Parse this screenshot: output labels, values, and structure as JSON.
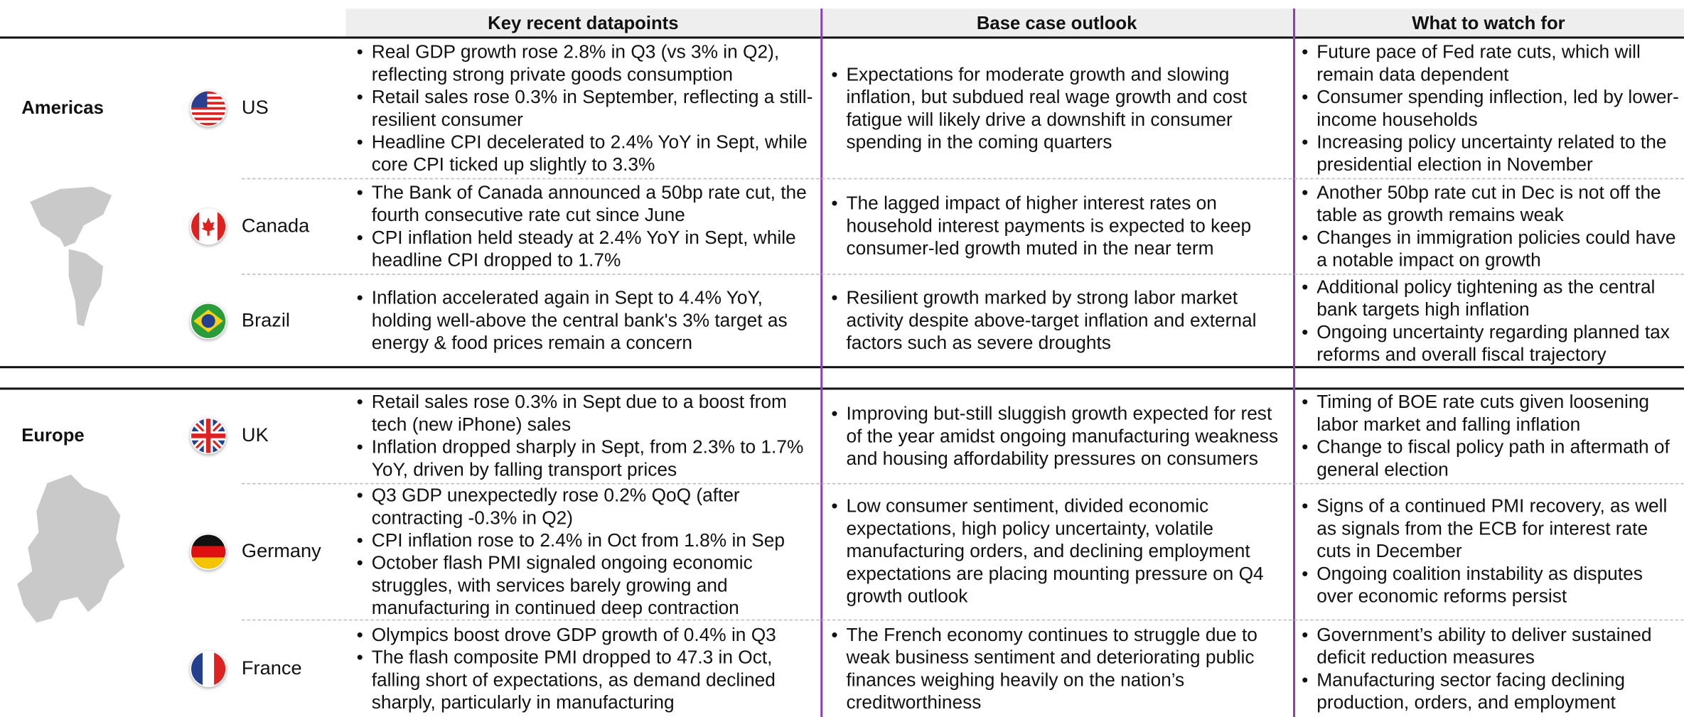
{
  "header": {
    "columns": [
      "Key recent datapoints",
      "Base case outlook",
      "What to watch for"
    ]
  },
  "regions": [
    {
      "name": "Americas",
      "countries": [
        {
          "name": "US",
          "datapoints": [
            "Real GDP growth rose 2.8% in Q3 (vs 3% in Q2), reflecting strong private goods consumption",
            "Retail sales rose 0.3% in September, reflecting a still-resilient consumer",
            "Headline CPI decelerated to 2.4% YoY in Sept, while core CPI ticked up slightly to 3.3%"
          ],
          "outlook": [
            "Expectations for moderate growth and slowing inflation, but subdued real wage growth and cost fatigue will likely drive a downshift in consumer spending in the coming quarters"
          ],
          "watch": [
            "Future pace of Fed rate cuts, which will remain data dependent",
            "Consumer spending inflection, led by lower-income households",
            "Increasing policy uncertainty related to the presidential election in November"
          ]
        },
        {
          "name": "Canada",
          "datapoints": [
            "The Bank of Canada announced a 50bp rate cut, the fourth consecutive rate cut since June",
            "CPI inflation held steady at 2.4% YoY in Sept, while headline CPI dropped to 1.7%"
          ],
          "outlook": [
            "The lagged impact of higher interest rates on household interest payments is expected to keep consumer-led growth muted in the near term"
          ],
          "watch": [
            "Another 50bp rate cut in Dec is not off the table as growth remains weak",
            "Changes in immigration policies could have a notable impact on growth"
          ]
        },
        {
          "name": "Brazil",
          "datapoints": [
            "Inflation accelerated again in Sept to 4.4% YoY, holding well-above the central bank's 3% target as energy & food prices remain a concern"
          ],
          "outlook": [
            "Resilient growth marked by strong labor market activity despite above-target inflation and external factors such as severe droughts"
          ],
          "watch": [
            "Additional policy tightening as the central bank targets high inflation",
            "Ongoing uncertainty regarding planned tax reforms and overall fiscal trajectory"
          ]
        }
      ]
    },
    {
      "name": "Europe",
      "countries": [
        {
          "name": "UK",
          "datapoints": [
            "Retail sales rose 0.3% in Sept due to a boost from tech (new iPhone) sales",
            "Inflation dropped sharply in Sept, from 2.3% to 1.7% YoY, driven by falling transport prices"
          ],
          "outlook": [
            "Improving but-still sluggish growth expected for rest of the year amidst ongoing manufacturing weakness and housing affordability pressures on consumers"
          ],
          "watch": [
            "Timing of BOE rate cuts given loosening labor market and falling inflation",
            "Change to fiscal policy path in aftermath of general election"
          ]
        },
        {
          "name": "Germany",
          "datapoints": [
            "Q3 GDP unexpectedly rose 0.2% QoQ (after contracting -0.3% in Q2)",
            "CPI inflation rose to 2.4% in Oct from 1.8% in Sep",
            "October flash PMI signaled ongoing economic struggles, with services barely growing and manufacturing in continued deep contraction"
          ],
          "outlook": [
            "Low consumer sentiment, divided economic expectations, high policy uncertainty, volatile manufacturing orders, and declining employment expectations are placing mounting pressure on Q4 growth outlook"
          ],
          "watch": [
            "Signs of a continued PMI recovery, as well as signals from the ECB for interest rate cuts in December",
            "Ongoing coalition instability as disputes over economic reforms persist"
          ]
        },
        {
          "name": "France",
          "datapoints": [
            "Olympics boost drove GDP growth of 0.4% in Q3",
            "The flash composite PMI dropped to 47.3 in Oct, falling short of expectations, as demand declined sharply, particularly in manufacturing"
          ],
          "outlook": [
            "The French economy continues to struggle due to weak business sentiment and deteriorating public finances weighing heavily on the nation’s creditworthiness"
          ],
          "watch": [
            "Government’s ability to deliver sustained deficit reduction measures",
            "Manufacturing sector facing declining production, orders, and employment"
          ]
        }
      ]
    }
  ]
}
